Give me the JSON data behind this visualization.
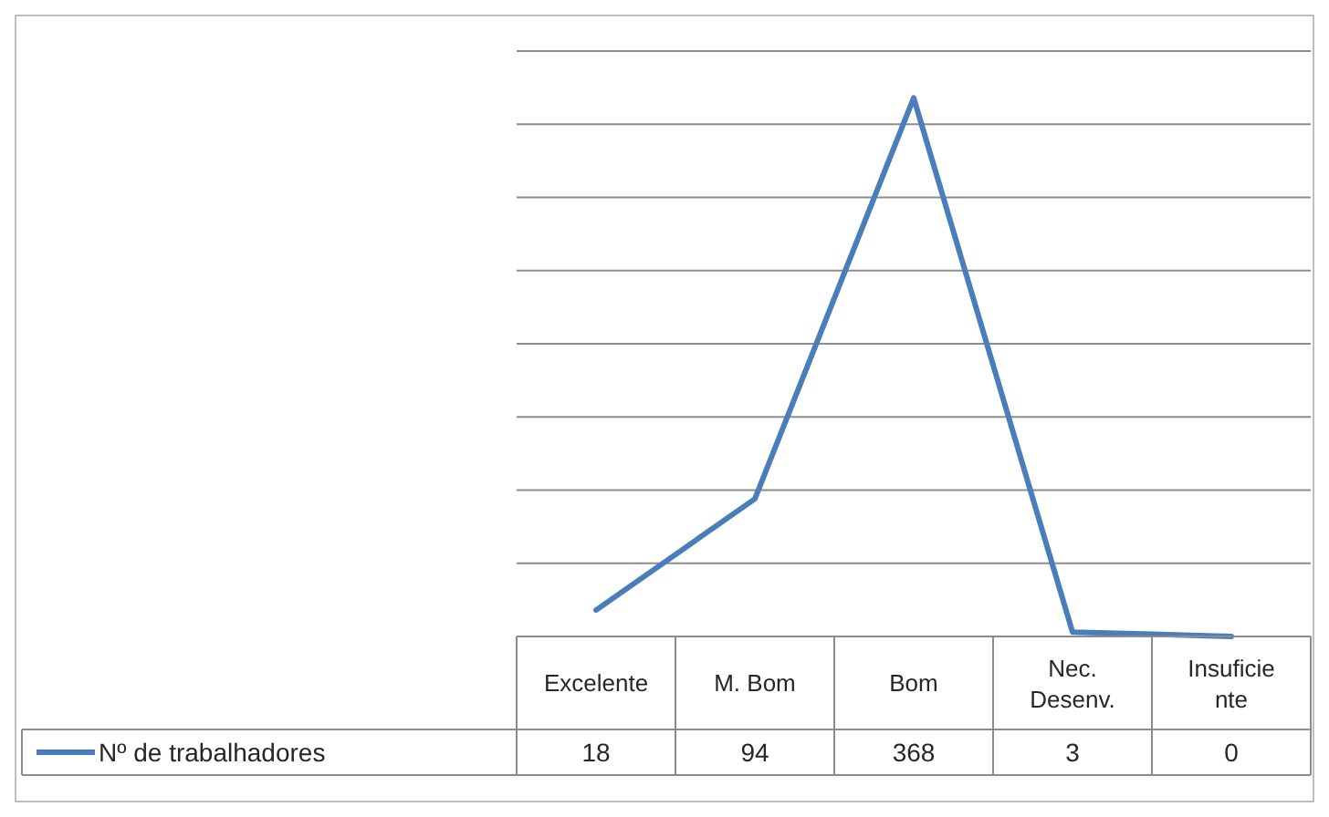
{
  "chart_data": {
    "type": "line",
    "categories": [
      "Excelente",
      "M. Bom",
      "Bom",
      "Nec. Desenv.",
      "Insuficiente"
    ],
    "series": [
      {
        "name": "Nº de trabalhadores",
        "color": "#4a7ebb",
        "values": [
          18,
          94,
          368,
          3,
          0
        ]
      }
    ],
    "ylim": [
      0,
      400
    ],
    "yticks": [
      {
        "value": 0,
        "label": null
      },
      {
        "value": 50,
        "label": null
      },
      {
        "value": 100,
        "label": null
      },
      {
        "value": 150,
        "label": null
      },
      {
        "value": 200,
        "label": null
      },
      {
        "value": 250,
        "label": null
      },
      {
        "value": 300,
        "label": null
      },
      {
        "value": 350,
        "label": null
      },
      {
        "value": 400,
        "label": null
      }
    ],
    "grid": "y",
    "data_labels": true,
    "legend": "bottom",
    "marker": "none",
    "line_style": "solid"
  }
}
